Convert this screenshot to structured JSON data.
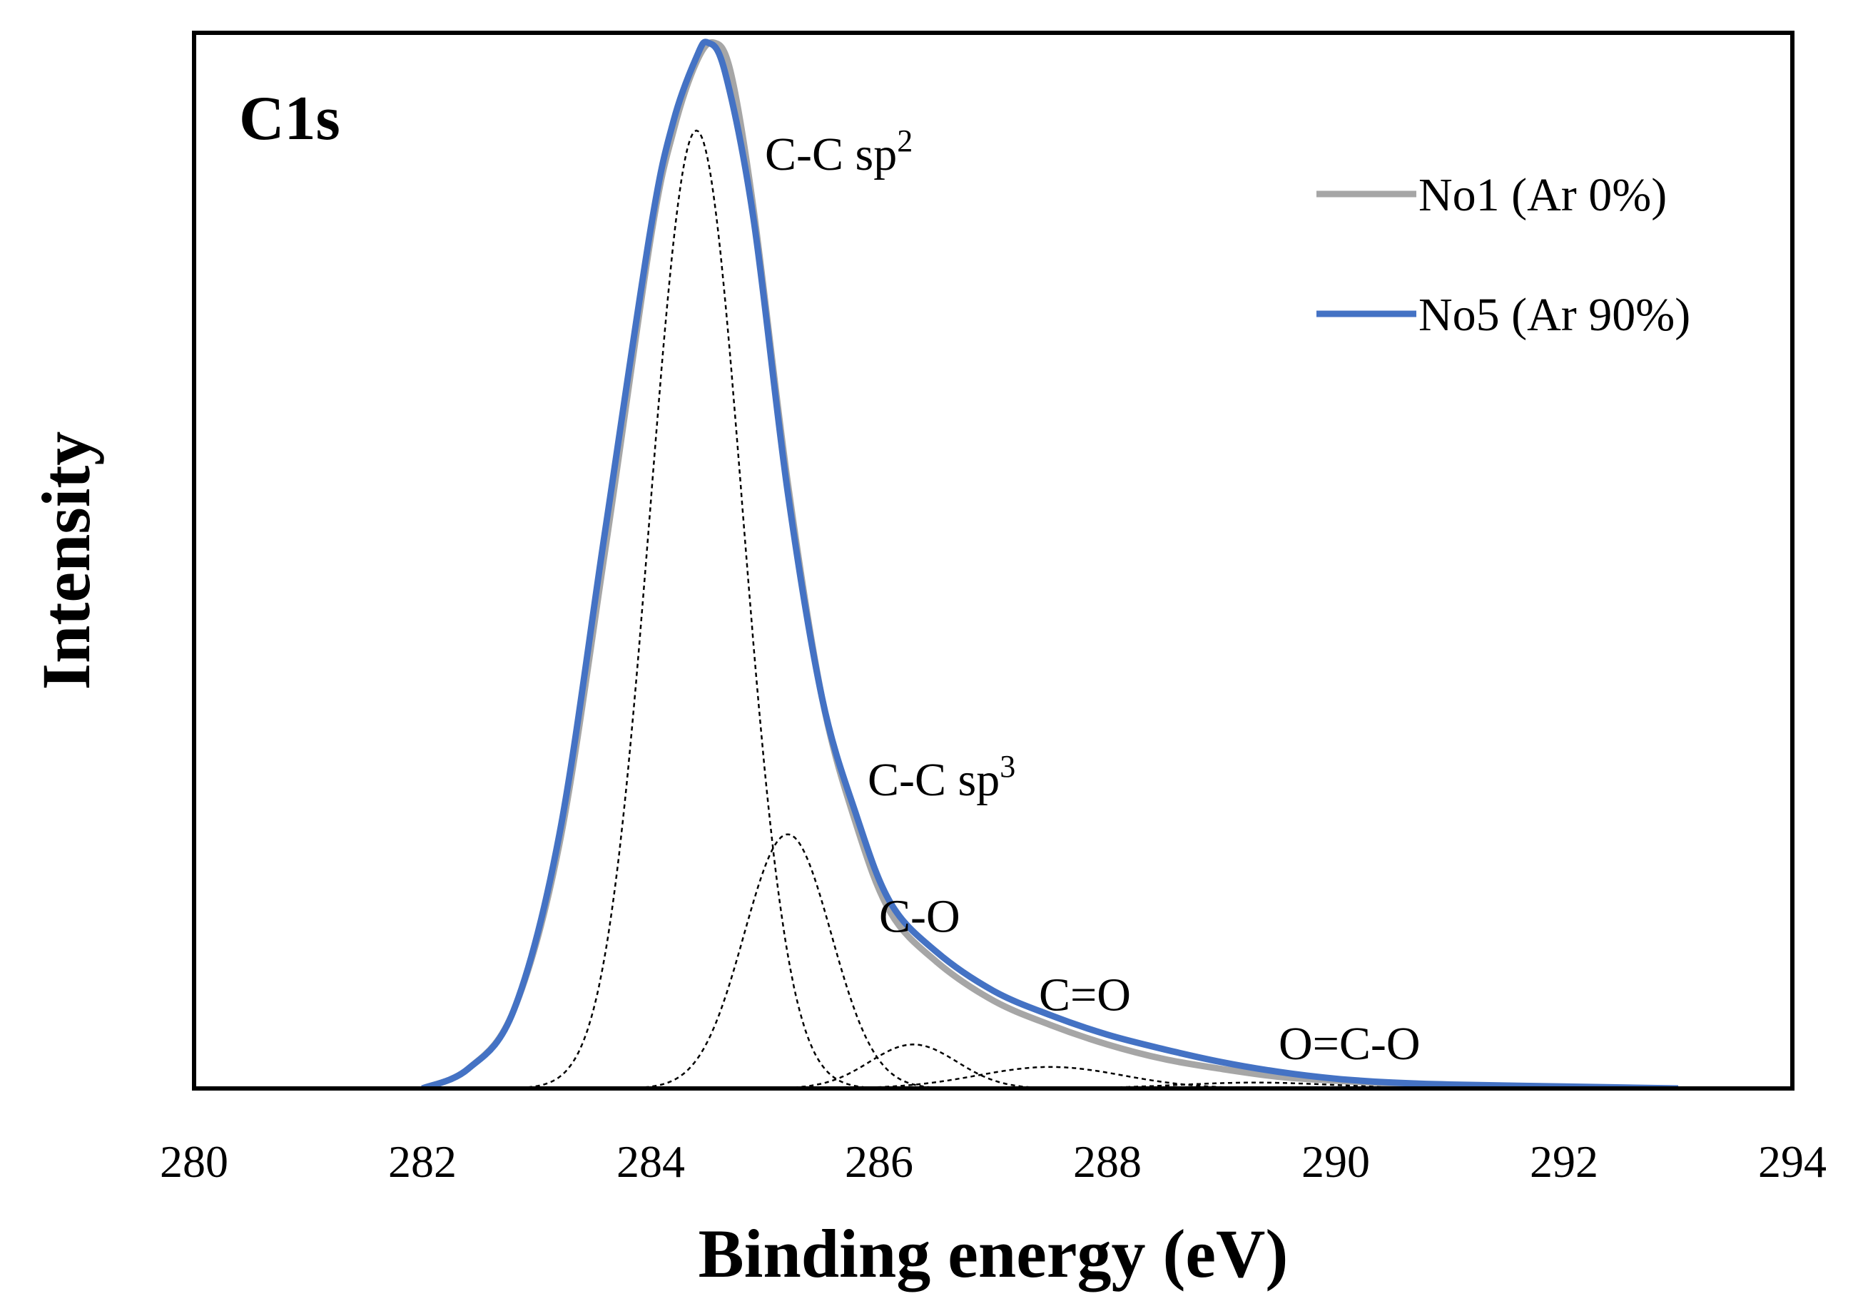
{
  "chart_data": {
    "type": "line",
    "panel_label": "C1s",
    "xlabel": "Binding energy (eV)",
    "ylabel": "Intensity",
    "xlim": [
      280,
      294
    ],
    "ylim": [
      0,
      1.08
    ],
    "xticks": [
      "280",
      "282",
      "284",
      "286",
      "288",
      "290",
      "292",
      "294"
    ],
    "y_tick_labels_shown": false,
    "grid": false,
    "legend_position": "top-right",
    "series": [
      {
        "name": "No1 (Ar 0%)",
        "color": "#a6a6a6",
        "x": [
          282.0,
          282.4,
          282.8,
          283.2,
          283.6,
          284.0,
          284.2,
          284.4,
          284.55,
          284.7,
          284.9,
          285.2,
          285.5,
          285.8,
          286.1,
          286.5,
          287.0,
          287.5,
          288.0,
          288.5,
          289.0,
          289.5,
          290.0,
          290.5,
          291.0,
          292.0,
          293.0
        ],
        "y": [
          0.0,
          0.02,
          0.08,
          0.25,
          0.55,
          0.87,
          0.98,
          1.05,
          1.07,
          1.04,
          0.9,
          0.62,
          0.4,
          0.27,
          0.18,
          0.13,
          0.09,
          0.065,
          0.045,
          0.03,
          0.02,
          0.012,
          0.008,
          0.005,
          0.003,
          0.001,
          0.0
        ]
      },
      {
        "name": "No5 (Ar 90%)",
        "color": "#4472c4",
        "x": [
          282.0,
          282.4,
          282.8,
          283.2,
          283.6,
          284.0,
          284.2,
          284.4,
          284.5,
          284.65,
          284.9,
          285.2,
          285.5,
          285.8,
          286.1,
          286.5,
          287.0,
          287.5,
          288.0,
          288.5,
          289.0,
          289.5,
          290.0,
          290.5,
          291.0,
          292.0,
          293.0
        ],
        "y": [
          0.0,
          0.02,
          0.08,
          0.26,
          0.57,
          0.88,
          0.99,
          1.055,
          1.07,
          1.04,
          0.89,
          0.61,
          0.4,
          0.28,
          0.19,
          0.14,
          0.1,
          0.075,
          0.055,
          0.04,
          0.027,
          0.017,
          0.01,
          0.006,
          0.004,
          0.002,
          0.0
        ]
      }
    ],
    "components": [
      {
        "name": "C-C sp2",
        "center": 284.4,
        "height": 0.98,
        "fwhm": 0.95
      },
      {
        "name": "C-C sp3",
        "center": 285.2,
        "height": 0.26,
        "fwhm": 0.9
      },
      {
        "name": "C-O",
        "center": 286.3,
        "height": 0.045,
        "fwhm": 0.9
      },
      {
        "name": "C=O",
        "center": 287.5,
        "height": 0.022,
        "fwhm": 1.5
      },
      {
        "name": "O=C-O",
        "center": 289.3,
        "height": 0.006,
        "fwhm": 1.6
      }
    ],
    "annotations": [
      {
        "base": "C-C sp",
        "sup": "2",
        "x": 285.0,
        "y": 0.94
      },
      {
        "base": "C-C sp",
        "sup": "3",
        "x": 285.9,
        "y": 0.3
      },
      {
        "base": "C-O",
        "sup": "",
        "x": 286.0,
        "y": 0.16
      },
      {
        "base": "C=O",
        "sup": "",
        "x": 287.4,
        "y": 0.08
      },
      {
        "base": "O=C-O",
        "sup": "",
        "x": 289.5,
        "y": 0.03
      }
    ]
  }
}
